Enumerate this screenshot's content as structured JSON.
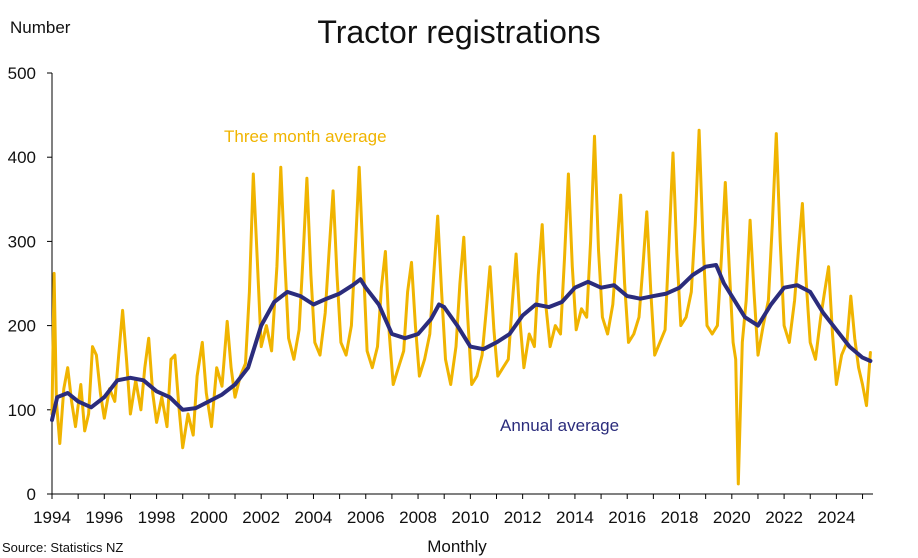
{
  "chart_data": {
    "type": "line",
    "title": "Tractor registrations",
    "ylabel": "Number",
    "xlabel": "Monthly",
    "source": "Source: Statistics NZ",
    "ylim": [
      0,
      500
    ],
    "xlim": [
      1994,
      2025.4
    ],
    "yticks": [
      0,
      100,
      200,
      300,
      400,
      500
    ],
    "xticks": [
      "1994",
      "1996",
      "1998",
      "2000",
      "2002",
      "2004",
      "2006",
      "2008",
      "2010",
      "2012",
      "2014",
      "2016",
      "2018",
      "2020",
      "2022",
      "2024"
    ],
    "colors": {
      "three_month": "#F0B400",
      "annual": "#2B2C7C",
      "axis": "#000000"
    },
    "series": [
      {
        "name": "Three month average",
        "color": "#F0B400",
        "points": [
          [
            1994.0,
            95
          ],
          [
            1994.08,
            262
          ],
          [
            1994.17,
            110
          ],
          [
            1994.3,
            60
          ],
          [
            1994.45,
            125
          ],
          [
            1994.6,
            150
          ],
          [
            1994.75,
            110
          ],
          [
            1994.9,
            80
          ],
          [
            1995.1,
            130
          ],
          [
            1995.25,
            75
          ],
          [
            1995.4,
            95
          ],
          [
            1995.55,
            175
          ],
          [
            1995.7,
            165
          ],
          [
            1995.85,
            120
          ],
          [
            1996.0,
            90
          ],
          [
            1996.2,
            125
          ],
          [
            1996.4,
            110
          ],
          [
            1996.55,
            165
          ],
          [
            1996.7,
            218
          ],
          [
            1996.85,
            160
          ],
          [
            1997.0,
            95
          ],
          [
            1997.2,
            135
          ],
          [
            1997.4,
            100
          ],
          [
            1997.55,
            150
          ],
          [
            1997.7,
            185
          ],
          [
            1997.85,
            120
          ],
          [
            1998.0,
            85
          ],
          [
            1998.2,
            115
          ],
          [
            1998.4,
            80
          ],
          [
            1998.55,
            160
          ],
          [
            1998.7,
            165
          ],
          [
            1998.85,
            105
          ],
          [
            1999.0,
            55
          ],
          [
            1999.2,
            95
          ],
          [
            1999.4,
            70
          ],
          [
            1999.55,
            140
          ],
          [
            1999.75,
            180
          ],
          [
            1999.9,
            120
          ],
          [
            2000.1,
            80
          ],
          [
            2000.3,
            150
          ],
          [
            2000.5,
            128
          ],
          [
            2000.7,
            205
          ],
          [
            2000.85,
            150
          ],
          [
            2001.0,
            115
          ],
          [
            2001.2,
            140
          ],
          [
            2001.4,
            155
          ],
          [
            2001.55,
            240
          ],
          [
            2001.7,
            380
          ],
          [
            2001.85,
            280
          ],
          [
            2002.0,
            175
          ],
          [
            2002.2,
            200
          ],
          [
            2002.4,
            170
          ],
          [
            2002.6,
            270
          ],
          [
            2002.75,
            388
          ],
          [
            2002.9,
            280
          ],
          [
            2003.05,
            185
          ],
          [
            2003.25,
            160
          ],
          [
            2003.45,
            195
          ],
          [
            2003.6,
            280
          ],
          [
            2003.75,
            375
          ],
          [
            2003.9,
            260
          ],
          [
            2004.05,
            180
          ],
          [
            2004.25,
            165
          ],
          [
            2004.45,
            215
          ],
          [
            2004.6,
            290
          ],
          [
            2004.75,
            360
          ],
          [
            2004.9,
            260
          ],
          [
            2005.05,
            180
          ],
          [
            2005.25,
            165
          ],
          [
            2005.45,
            200
          ],
          [
            2005.6,
            290
          ],
          [
            2005.75,
            388
          ],
          [
            2005.9,
            280
          ],
          [
            2006.05,
            170
          ],
          [
            2006.25,
            150
          ],
          [
            2006.45,
            175
          ],
          [
            2006.6,
            245
          ],
          [
            2006.75,
            288
          ],
          [
            2006.9,
            190
          ],
          [
            2007.05,
            130
          ],
          [
            2007.25,
            150
          ],
          [
            2007.45,
            170
          ],
          [
            2007.6,
            240
          ],
          [
            2007.75,
            275
          ],
          [
            2007.9,
            200
          ],
          [
            2008.05,
            140
          ],
          [
            2008.25,
            160
          ],
          [
            2008.45,
            190
          ],
          [
            2008.6,
            260
          ],
          [
            2008.75,
            330
          ],
          [
            2008.9,
            240
          ],
          [
            2009.05,
            160
          ],
          [
            2009.25,
            130
          ],
          [
            2009.45,
            175
          ],
          [
            2009.6,
            250
          ],
          [
            2009.75,
            305
          ],
          [
            2009.9,
            210
          ],
          [
            2010.05,
            130
          ],
          [
            2010.25,
            140
          ],
          [
            2010.45,
            165
          ],
          [
            2010.6,
            215
          ],
          [
            2010.75,
            270
          ],
          [
            2010.9,
            195
          ],
          [
            2011.05,
            140
          ],
          [
            2011.25,
            150
          ],
          [
            2011.45,
            160
          ],
          [
            2011.6,
            225
          ],
          [
            2011.75,
            285
          ],
          [
            2011.9,
            205
          ],
          [
            2012.05,
            150
          ],
          [
            2012.25,
            190
          ],
          [
            2012.45,
            175
          ],
          [
            2012.6,
            260
          ],
          [
            2012.75,
            320
          ],
          [
            2012.9,
            220
          ],
          [
            2013.05,
            175
          ],
          [
            2013.25,
            200
          ],
          [
            2013.45,
            190
          ],
          [
            2013.6,
            280
          ],
          [
            2013.75,
            380
          ],
          [
            2013.9,
            270
          ],
          [
            2014.05,
            195
          ],
          [
            2014.25,
            220
          ],
          [
            2014.45,
            210
          ],
          [
            2014.6,
            300
          ],
          [
            2014.75,
            425
          ],
          [
            2014.9,
            290
          ],
          [
            2015.05,
            210
          ],
          [
            2015.25,
            190
          ],
          [
            2015.45,
            225
          ],
          [
            2015.6,
            290
          ],
          [
            2015.75,
            355
          ],
          [
            2015.9,
            250
          ],
          [
            2016.05,
            180
          ],
          [
            2016.25,
            190
          ],
          [
            2016.45,
            210
          ],
          [
            2016.6,
            270
          ],
          [
            2016.75,
            335
          ],
          [
            2016.9,
            240
          ],
          [
            2017.05,
            165
          ],
          [
            2017.25,
            180
          ],
          [
            2017.45,
            195
          ],
          [
            2017.6,
            300
          ],
          [
            2017.75,
            405
          ],
          [
            2017.9,
            285
          ],
          [
            2018.05,
            200
          ],
          [
            2018.25,
            210
          ],
          [
            2018.45,
            240
          ],
          [
            2018.6,
            320
          ],
          [
            2018.75,
            432
          ],
          [
            2018.9,
            300
          ],
          [
            2019.05,
            200
          ],
          [
            2019.25,
            190
          ],
          [
            2019.45,
            200
          ],
          [
            2019.6,
            280
          ],
          [
            2019.75,
            370
          ],
          [
            2019.9,
            270
          ],
          [
            2020.05,
            180
          ],
          [
            2020.15,
            160
          ],
          [
            2020.25,
            12
          ],
          [
            2020.4,
            180
          ],
          [
            2020.55,
            230
          ],
          [
            2020.7,
            325
          ],
          [
            2020.85,
            240
          ],
          [
            2021.0,
            165
          ],
          [
            2021.2,
            200
          ],
          [
            2021.4,
            230
          ],
          [
            2021.55,
            320
          ],
          [
            2021.7,
            428
          ],
          [
            2021.85,
            300
          ],
          [
            2022.0,
            200
          ],
          [
            2022.2,
            180
          ],
          [
            2022.4,
            230
          ],
          [
            2022.55,
            290
          ],
          [
            2022.7,
            345
          ],
          [
            2022.85,
            250
          ],
          [
            2023.0,
            180
          ],
          [
            2023.2,
            160
          ],
          [
            2023.4,
            210
          ],
          [
            2023.55,
            240
          ],
          [
            2023.7,
            270
          ],
          [
            2023.85,
            190
          ],
          [
            2024.0,
            130
          ],
          [
            2024.2,
            165
          ],
          [
            2024.4,
            180
          ],
          [
            2024.55,
            235
          ],
          [
            2024.7,
            185
          ],
          [
            2024.85,
            150
          ],
          [
            2025.0,
            130
          ],
          [
            2025.15,
            105
          ],
          [
            2025.3,
            168
          ]
        ]
      },
      {
        "name": "Annual average",
        "color": "#2B2C7C",
        "points": [
          [
            1994.0,
            88
          ],
          [
            1994.2,
            115
          ],
          [
            1994.6,
            120
          ],
          [
            1995.0,
            110
          ],
          [
            1995.5,
            103
          ],
          [
            1996.0,
            115
          ],
          [
            1996.5,
            135
          ],
          [
            1997.0,
            138
          ],
          [
            1997.5,
            135
          ],
          [
            1998.0,
            122
          ],
          [
            1998.5,
            115
          ],
          [
            1999.0,
            100
          ],
          [
            1999.5,
            102
          ],
          [
            2000.0,
            110
          ],
          [
            2000.5,
            118
          ],
          [
            2001.0,
            130
          ],
          [
            2001.5,
            150
          ],
          [
            2002.0,
            200
          ],
          [
            2002.5,
            228
          ],
          [
            2003.0,
            240
          ],
          [
            2003.5,
            235
          ],
          [
            2004.0,
            225
          ],
          [
            2004.5,
            232
          ],
          [
            2005.0,
            238
          ],
          [
            2005.5,
            248
          ],
          [
            2005.8,
            255
          ],
          [
            2006.0,
            245
          ],
          [
            2006.5,
            225
          ],
          [
            2007.0,
            190
          ],
          [
            2007.5,
            185
          ],
          [
            2008.0,
            190
          ],
          [
            2008.5,
            208
          ],
          [
            2008.8,
            225
          ],
          [
            2009.0,
            222
          ],
          [
            2009.5,
            200
          ],
          [
            2010.0,
            175
          ],
          [
            2010.5,
            172
          ],
          [
            2011.0,
            180
          ],
          [
            2011.5,
            190
          ],
          [
            2012.0,
            212
          ],
          [
            2012.5,
            225
          ],
          [
            2013.0,
            222
          ],
          [
            2013.5,
            228
          ],
          [
            2014.0,
            245
          ],
          [
            2014.5,
            252
          ],
          [
            2015.0,
            245
          ],
          [
            2015.5,
            248
          ],
          [
            2016.0,
            235
          ],
          [
            2016.5,
            232
          ],
          [
            2017.0,
            235
          ],
          [
            2017.5,
            238
          ],
          [
            2018.0,
            245
          ],
          [
            2018.5,
            260
          ],
          [
            2019.0,
            270
          ],
          [
            2019.4,
            272
          ],
          [
            2019.7,
            250
          ],
          [
            2020.0,
            235
          ],
          [
            2020.5,
            210
          ],
          [
            2021.0,
            200
          ],
          [
            2021.5,
            225
          ],
          [
            2022.0,
            245
          ],
          [
            2022.5,
            248
          ],
          [
            2023.0,
            240
          ],
          [
            2023.5,
            215
          ],
          [
            2024.0,
            195
          ],
          [
            2024.5,
            175
          ],
          [
            2025.0,
            162
          ],
          [
            2025.3,
            158
          ]
        ]
      }
    ]
  }
}
